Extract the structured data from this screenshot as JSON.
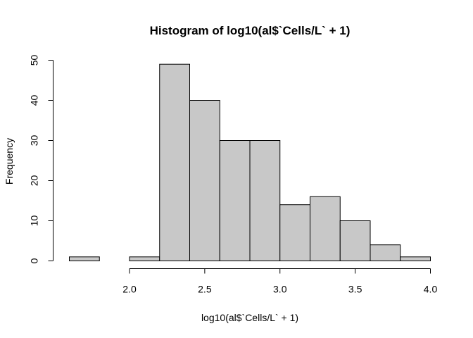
{
  "chart_data": {
    "type": "bar",
    "title": "Histogram of log10(al$`Cells/L` + 1)",
    "xlabel": "log10(al$`Cells/L` + 1)",
    "ylabel": "Frequency",
    "xlim": [
      1.6,
      4.0
    ],
    "ylim": [
      0,
      50
    ],
    "grid": false,
    "bins": [
      {
        "from": 1.6,
        "to": 1.8,
        "count": 1
      },
      {
        "from": 1.8,
        "to": 2.0,
        "count": 0
      },
      {
        "from": 2.0,
        "to": 2.2,
        "count": 1
      },
      {
        "from": 2.2,
        "to": 2.4,
        "count": 49
      },
      {
        "from": 2.4,
        "to": 2.6,
        "count": 40
      },
      {
        "from": 2.6,
        "to": 2.8,
        "count": 30
      },
      {
        "from": 2.8,
        "to": 3.0,
        "count": 30
      },
      {
        "from": 3.0,
        "to": 3.2,
        "count": 14
      },
      {
        "from": 3.2,
        "to": 3.4,
        "count": 16
      },
      {
        "from": 3.4,
        "to": 3.6,
        "count": 10
      },
      {
        "from": 3.6,
        "to": 3.8,
        "count": 4
      },
      {
        "from": 3.8,
        "to": 4.0,
        "count": 1
      }
    ],
    "x_ticks": [
      "2.0",
      "2.5",
      "3.0",
      "3.5",
      "4.0"
    ],
    "y_ticks": [
      "0",
      "10",
      "20",
      "30",
      "40",
      "50"
    ]
  }
}
